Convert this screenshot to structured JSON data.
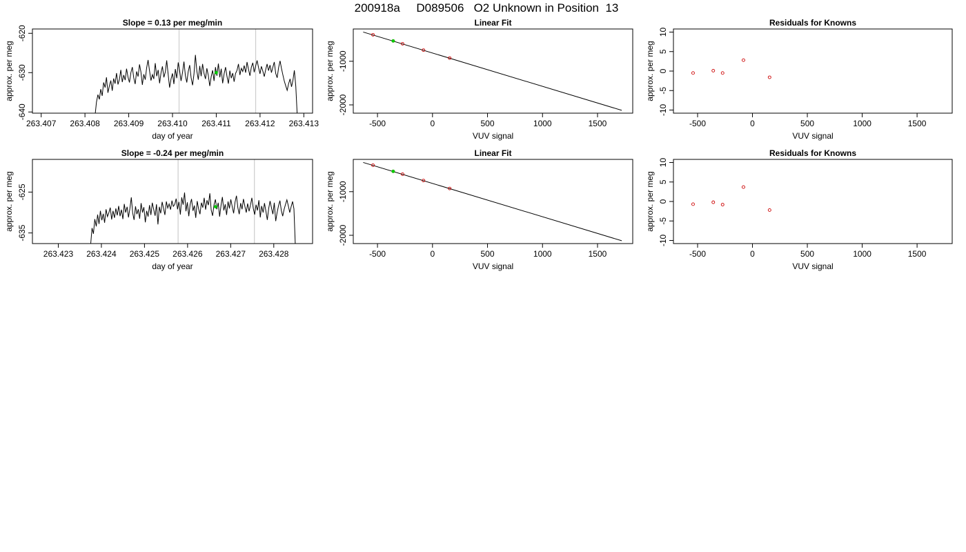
{
  "page_title": "200918a     D089506   O2 Unknown in Position  13",
  "colors": {
    "trace": "#000000",
    "highlight": "#00cc00",
    "known_points": "#cc0000",
    "marker_lines": "#cccccc",
    "axes": "#000000"
  },
  "chart_data": [
    {
      "type": "line",
      "title": "Slope =  0.13  per meg/min",
      "xlabel": "day of year",
      "ylabel": "approx. per meg",
      "xlim": [
        263.4068,
        263.4132
      ],
      "ylim": [
        -640.3,
        -618.9
      ],
      "xticks": [
        "263.407",
        "263.408",
        "263.409",
        "263.410",
        "263.411",
        "263.412",
        "263.413"
      ],
      "xtick_values": [
        263.407,
        263.408,
        263.409,
        263.41,
        263.411,
        263.412,
        263.413
      ],
      "yticks": [
        "-620",
        "-630",
        "-640"
      ],
      "ytick_values": [
        -620,
        -630,
        -640
      ],
      "vlines": [
        263.41015,
        263.4119
      ],
      "trace_range": [
        263.40823,
        263.41285
      ],
      "trace_y": [
        -641,
        -637.5,
        -635.6,
        -636.8,
        -634.2,
        -635.9,
        -632.5,
        -633.8,
        -631.2,
        -635.1,
        -633.4,
        -632.0,
        -634.6,
        -631.5,
        -632.8,
        -630.1,
        -633.0,
        -631.7,
        -629.3,
        -632.4,
        -630.6,
        -631.9,
        -629.0,
        -631.1,
        -632.5,
        -630.0,
        -628.6,
        -631.3,
        -632.9,
        -629.7,
        -631.0,
        -627.9,
        -629.8,
        -633.1,
        -630.4,
        -631.8,
        -628.8,
        -626.8,
        -629.5,
        -632.0,
        -630.5,
        -631.6,
        -627.6,
        -630.9,
        -629.3,
        -632.7,
        -630.1,
        -628.4,
        -631.2,
        -629.8,
        -626.9,
        -630.4,
        -633.8,
        -631.6,
        -630.2,
        -632.9,
        -629.1,
        -631.4,
        -627.4,
        -629.6,
        -632.1,
        -630.0,
        -627.2,
        -630.8,
        -632.5,
        -629.7,
        -628.1,
        -631.3,
        -633.2,
        -630.4,
        -625.5,
        -629.6,
        -631.8,
        -628.3,
        -630.9,
        -627.8,
        -630.2,
        -631.6,
        -628.9,
        -630.7,
        -633.4,
        -631.0,
        -629.4,
        -632.1,
        -628.6,
        -630.8,
        -627.7,
        -631.2,
        -629.0,
        -632.7,
        -630.3,
        -628.6,
        -630.9,
        -632.8,
        -629.5,
        -631.4,
        -630.1,
        -632.3,
        -630.2,
        -629.4,
        -627.8,
        -630.6,
        -628.9,
        -629.7,
        -628.2,
        -630.0,
        -627.3,
        -629.1,
        -630.8,
        -628.6,
        -627.5,
        -629.9,
        -628.3,
        -626.9,
        -628.7,
        -630.3,
        -628.4,
        -629.6,
        -631.0,
        -629.2,
        -627.8,
        -629.5,
        -628.1,
        -630.0,
        -628.6,
        -627.3,
        -630.2,
        -631.3,
        -628.7,
        -627.0,
        -628.9,
        -630.6,
        -632.2,
        -633.4,
        -634.5,
        -632.8,
        -631.6,
        -633.6,
        -631.9,
        -629.4,
        -633.5,
        -641
      ],
      "highlight_point": [
        263.411,
        -630.0
      ]
    },
    {
      "type": "scatter",
      "title": "Linear Fit",
      "xlabel": "VUV signal",
      "ylabel": "approx. per meg",
      "xlim": [
        -720,
        1820
      ],
      "ylim": [
        -2190,
        -260
      ],
      "xticks": [
        "-500",
        "0",
        "500",
        "1000",
        "1500"
      ],
      "xtick_values": [
        -500,
        0,
        500,
        1000,
        1500
      ],
      "yticks": [
        "-1000",
        "-2000"
      ],
      "ytick_values": [
        -1000,
        -2000
      ],
      "fit_line": [
        [
          -630,
          -330
        ],
        [
          1720,
          -2125
        ]
      ],
      "points": [
        [
          -541,
          -393
        ],
        [
          -357,
          -534
        ],
        [
          -272,
          -599
        ],
        [
          -82,
          -745
        ],
        [
          156,
          -927
        ]
      ],
      "highlight_point": [
        -357,
        -534
      ]
    },
    {
      "type": "scatter",
      "title": "Residuals for Knowns",
      "xlabel": "VUV signal",
      "ylabel": "approx. per meg",
      "xlim": [
        -720,
        1820
      ],
      "ylim": [
        -10.8,
        10.8
      ],
      "xticks": [
        "-500",
        "0",
        "500",
        "1000",
        "1500"
      ],
      "xtick_values": [
        -500,
        0,
        500,
        1000,
        1500
      ],
      "yticks": [
        "10",
        "5",
        "0",
        "-5",
        "-10"
      ],
      "ytick_values": [
        10,
        5,
        0,
        -5,
        -10
      ],
      "points": [
        [
          -541,
          -0.5
        ],
        [
          -357,
          0.1
        ],
        [
          -272,
          -0.5
        ],
        [
          -82,
          2.8
        ],
        [
          156,
          -1.6
        ]
      ]
    },
    {
      "type": "line",
      "title": "Slope =  -0.24  per meg/min",
      "xlabel": "day of year",
      "ylabel": "approx. per meg",
      "xlim": [
        263.4224,
        263.4289
      ],
      "ylim": [
        -637.6,
        -617.0
      ],
      "xticks": [
        "263.423",
        "263.424",
        "263.425",
        "263.426",
        "263.427",
        "263.428"
      ],
      "xtick_values": [
        263.423,
        263.424,
        263.425,
        263.426,
        263.427,
        263.428
      ],
      "yticks": [
        "-625",
        "-635"
      ],
      "ytick_values": [
        -625,
        -635
      ],
      "vlines": [
        263.42578,
        263.42755
      ],
      "trace_range": [
        263.42375,
        263.4285
      ],
      "trace_y": [
        -638,
        -633.8,
        -635.2,
        -631.6,
        -633.4,
        -630.5,
        -632.8,
        -629.6,
        -631.9,
        -630.3,
        -632.5,
        -629.2,
        -631.0,
        -630.1,
        -628.8,
        -631.7,
        -629.6,
        -631.3,
        -629.0,
        -630.7,
        -628.4,
        -630.9,
        -629.3,
        -631.6,
        -627.9,
        -630.0,
        -628.6,
        -631.2,
        -629.1,
        -626.3,
        -630.1,
        -631.8,
        -628.5,
        -630.4,
        -629.2,
        -631.5,
        -627.7,
        -630.0,
        -628.7,
        -632.4,
        -629.6,
        -631.0,
        -628.2,
        -630.6,
        -627.6,
        -629.3,
        -630.8,
        -628.0,
        -632.9,
        -628.6,
        -630.2,
        -627.4,
        -629.0,
        -630.6,
        -627.3,
        -628.9,
        -627.9,
        -629.3,
        -627.1,
        -628.5,
        -628.0,
        -626.6,
        -629.2,
        -627.4,
        -630.5,
        -626.3,
        -628.1,
        -625.1,
        -629.7,
        -627.5,
        -630.9,
        -628.0,
        -626.7,
        -629.6,
        -628.3,
        -631.3,
        -627.2,
        -629.1,
        -630.4,
        -627.6,
        -628.8,
        -626.4,
        -629.3,
        -627.0,
        -628.2,
        -625.3,
        -629.4,
        -630.8,
        -628.1,
        -626.8,
        -629.2,
        -627.6,
        -631.0,
        -628.3,
        -626.2,
        -629.5,
        -628.0,
        -630.6,
        -627.3,
        -629.0,
        -626.8,
        -628.6,
        -630.2,
        -627.5,
        -625.9,
        -628.8,
        -630.4,
        -627.7,
        -629.2,
        -626.7,
        -628.5,
        -630.0,
        -627.8,
        -629.7,
        -628.2,
        -626.4,
        -629.0,
        -630.5,
        -628.1,
        -629.5,
        -627.0,
        -631.2,
        -628.4,
        -630.0,
        -627.7,
        -629.6,
        -631.8,
        -629.0,
        -627.2,
        -628.9,
        -630.4,
        -627.6,
        -632.1,
        -630.0,
        -628.4,
        -627.1,
        -629.5,
        -630.9,
        -629.2,
        -628.0,
        -626.9,
        -628.4,
        -630.0,
        -628.6,
        -627.3,
        -629.1,
        -638
      ],
      "highlight_point": [
        263.42665,
        -628.6
      ]
    },
    {
      "type": "scatter",
      "title": "Linear Fit",
      "xlabel": "VUV signal",
      "ylabel": "approx. per meg",
      "xlim": [
        -720,
        1820
      ],
      "ylim": [
        -2190,
        -260
      ],
      "xticks": [
        "-500",
        "0",
        "500",
        "1000",
        "1500"
      ],
      "xtick_values": [
        -500,
        0,
        500,
        1000,
        1500
      ],
      "yticks": [
        "-1000",
        "-2000"
      ],
      "ytick_values": [
        -1000,
        -2000
      ],
      "fit_line": [
        [
          -630,
          -330
        ],
        [
          1720,
          -2125
        ]
      ],
      "points": [
        [
          -541,
          -393
        ],
        [
          -357,
          -534
        ],
        [
          -272,
          -599
        ],
        [
          -82,
          -745
        ],
        [
          156,
          -927
        ]
      ],
      "highlight_point": [
        -357,
        -534
      ]
    },
    {
      "type": "scatter",
      "title": "Residuals for Knowns",
      "xlabel": "VUV signal",
      "ylabel": "approx. per meg",
      "xlim": [
        -720,
        1820
      ],
      "ylim": [
        -10.8,
        10.8
      ],
      "xticks": [
        "-500",
        "0",
        "500",
        "1000",
        "1500"
      ],
      "xtick_values": [
        -500,
        0,
        500,
        1000,
        1500
      ],
      "yticks": [
        "10",
        "5",
        "0",
        "-5",
        "-10"
      ],
      "ytick_values": [
        10,
        5,
        0,
        -5,
        -10
      ],
      "points": [
        [
          -541,
          -0.7
        ],
        [
          -357,
          -0.2
        ],
        [
          -272,
          -0.8
        ],
        [
          -82,
          3.7
        ],
        [
          156,
          -2.2
        ]
      ]
    }
  ]
}
